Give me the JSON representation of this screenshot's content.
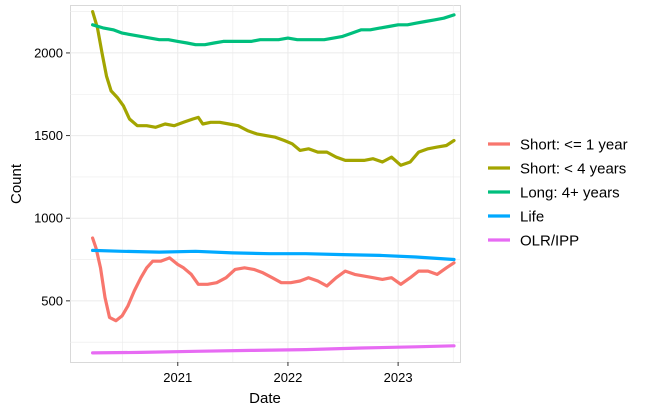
{
  "chart_data": {
    "type": "line",
    "xlabel": "Date",
    "ylabel": "Count",
    "x_axis": {
      "kind": "date",
      "range": [
        "2020-01-10",
        "2023-07-25"
      ],
      "ticks": [
        {
          "value": "2021-01-01",
          "label": "2021"
        },
        {
          "value": "2022-01-01",
          "label": "2022"
        },
        {
          "value": "2023-01-01",
          "label": "2023"
        }
      ]
    },
    "y_axis": {
      "range": [
        130,
        2290
      ],
      "ticks": [
        {
          "value": 500,
          "label": "500"
        },
        {
          "value": 1000,
          "label": "1000"
        },
        {
          "value": 1500,
          "label": "1500"
        },
        {
          "value": 2000,
          "label": "2000"
        }
      ]
    },
    "grid": true,
    "legend_position": "right",
    "series": [
      {
        "name": "Short: <= 1 year",
        "color": "#F8766D",
        "points": [
          [
            "2020-03-25",
            880
          ],
          [
            "2020-04-05",
            820
          ],
          [
            "2020-04-20",
            700
          ],
          [
            "2020-05-05",
            520
          ],
          [
            "2020-05-20",
            400
          ],
          [
            "2020-06-10",
            380
          ],
          [
            "2020-07-01",
            410
          ],
          [
            "2020-07-20",
            470
          ],
          [
            "2020-08-10",
            560
          ],
          [
            "2020-09-01",
            640
          ],
          [
            "2020-09-20",
            700
          ],
          [
            "2020-10-10",
            740
          ],
          [
            "2020-11-05",
            740
          ],
          [
            "2020-12-05",
            760
          ],
          [
            "2021-01-01",
            720
          ],
          [
            "2021-01-20",
            700
          ],
          [
            "2021-02-15",
            660
          ],
          [
            "2021-03-10",
            600
          ],
          [
            "2021-04-10",
            600
          ],
          [
            "2021-05-10",
            610
          ],
          [
            "2021-06-10",
            640
          ],
          [
            "2021-07-10",
            690
          ],
          [
            "2021-08-10",
            700
          ],
          [
            "2021-09-10",
            690
          ],
          [
            "2021-10-10",
            670
          ],
          [
            "2021-11-10",
            640
          ],
          [
            "2021-12-10",
            610
          ],
          [
            "2022-01-10",
            610
          ],
          [
            "2022-02-10",
            620
          ],
          [
            "2022-03-10",
            640
          ],
          [
            "2022-04-10",
            620
          ],
          [
            "2022-05-10",
            590
          ],
          [
            "2022-06-10",
            640
          ],
          [
            "2022-07-10",
            680
          ],
          [
            "2022-08-10",
            660
          ],
          [
            "2022-09-10",
            650
          ],
          [
            "2022-10-10",
            640
          ],
          [
            "2022-11-10",
            630
          ],
          [
            "2022-12-10",
            640
          ],
          [
            "2023-01-10",
            600
          ],
          [
            "2023-02-10",
            640
          ],
          [
            "2023-03-10",
            680
          ],
          [
            "2023-04-10",
            680
          ],
          [
            "2023-05-10",
            660
          ],
          [
            "2023-06-10",
            700
          ],
          [
            "2023-07-05",
            730
          ]
        ]
      },
      {
        "name": "Short: < 4 years",
        "color": "#A3A500",
        "points": [
          [
            "2020-03-25",
            2250
          ],
          [
            "2020-04-10",
            2150
          ],
          [
            "2020-04-25",
            2000
          ],
          [
            "2020-05-10",
            1860
          ],
          [
            "2020-05-25",
            1770
          ],
          [
            "2020-06-15",
            1730
          ],
          [
            "2020-07-05",
            1680
          ],
          [
            "2020-07-25",
            1600
          ],
          [
            "2020-08-20",
            1560
          ],
          [
            "2020-09-20",
            1560
          ],
          [
            "2020-10-20",
            1550
          ],
          [
            "2020-11-20",
            1570
          ],
          [
            "2020-12-20",
            1560
          ],
          [
            "2021-01-20",
            1580
          ],
          [
            "2021-02-20",
            1600
          ],
          [
            "2021-03-10",
            1610
          ],
          [
            "2021-03-25",
            1570
          ],
          [
            "2021-04-20",
            1580
          ],
          [
            "2021-05-20",
            1580
          ],
          [
            "2021-06-20",
            1570
          ],
          [
            "2021-07-20",
            1560
          ],
          [
            "2021-08-20",
            1530
          ],
          [
            "2021-09-20",
            1510
          ],
          [
            "2021-10-20",
            1500
          ],
          [
            "2021-11-20",
            1490
          ],
          [
            "2021-12-20",
            1470
          ],
          [
            "2022-01-15",
            1450
          ],
          [
            "2022-02-10",
            1410
          ],
          [
            "2022-03-10",
            1420
          ],
          [
            "2022-04-10",
            1400
          ],
          [
            "2022-05-10",
            1400
          ],
          [
            "2022-06-10",
            1370
          ],
          [
            "2022-07-10",
            1350
          ],
          [
            "2022-08-10",
            1350
          ],
          [
            "2022-09-10",
            1350
          ],
          [
            "2022-10-10",
            1360
          ],
          [
            "2022-11-10",
            1340
          ],
          [
            "2022-12-10",
            1370
          ],
          [
            "2023-01-10",
            1320
          ],
          [
            "2023-02-10",
            1340
          ],
          [
            "2023-03-10",
            1400
          ],
          [
            "2023-04-10",
            1420
          ],
          [
            "2023-05-10",
            1430
          ],
          [
            "2023-06-10",
            1440
          ],
          [
            "2023-07-05",
            1470
          ]
        ]
      },
      {
        "name": "Long: 4+ years",
        "color": "#00BF7D",
        "points": [
          [
            "2020-03-25",
            2170
          ],
          [
            "2020-05-01",
            2150
          ],
          [
            "2020-06-01",
            2140
          ],
          [
            "2020-07-01",
            2120
          ],
          [
            "2020-08-01",
            2110
          ],
          [
            "2020-09-01",
            2100
          ],
          [
            "2020-10-01",
            2090
          ],
          [
            "2020-11-01",
            2080
          ],
          [
            "2020-12-01",
            2080
          ],
          [
            "2021-01-01",
            2070
          ],
          [
            "2021-02-01",
            2060
          ],
          [
            "2021-03-01",
            2050
          ],
          [
            "2021-04-01",
            2050
          ],
          [
            "2021-05-01",
            2060
          ],
          [
            "2021-06-01",
            2070
          ],
          [
            "2021-07-01",
            2070
          ],
          [
            "2021-08-01",
            2070
          ],
          [
            "2021-09-01",
            2070
          ],
          [
            "2021-10-01",
            2080
          ],
          [
            "2021-11-01",
            2080
          ],
          [
            "2021-12-01",
            2080
          ],
          [
            "2022-01-01",
            2090
          ],
          [
            "2022-02-01",
            2080
          ],
          [
            "2022-03-01",
            2080
          ],
          [
            "2022-04-01",
            2080
          ],
          [
            "2022-05-01",
            2080
          ],
          [
            "2022-06-01",
            2090
          ],
          [
            "2022-07-01",
            2100
          ],
          [
            "2022-08-01",
            2120
          ],
          [
            "2022-09-01",
            2140
          ],
          [
            "2022-10-01",
            2140
          ],
          [
            "2022-11-01",
            2150
          ],
          [
            "2022-12-01",
            2160
          ],
          [
            "2023-01-01",
            2170
          ],
          [
            "2023-02-01",
            2170
          ],
          [
            "2023-03-01",
            2180
          ],
          [
            "2023-04-01",
            2190
          ],
          [
            "2023-05-01",
            2200
          ],
          [
            "2023-06-01",
            2210
          ],
          [
            "2023-07-05",
            2230
          ]
        ]
      },
      {
        "name": "Life",
        "color": "#00A9FF",
        "points": [
          [
            "2020-03-25",
            805
          ],
          [
            "2020-07-01",
            800
          ],
          [
            "2020-11-01",
            795
          ],
          [
            "2021-03-01",
            800
          ],
          [
            "2021-07-01",
            790
          ],
          [
            "2021-11-01",
            785
          ],
          [
            "2022-03-01",
            785
          ],
          [
            "2022-07-01",
            780
          ],
          [
            "2022-11-01",
            775
          ],
          [
            "2023-03-01",
            765
          ],
          [
            "2023-07-05",
            750
          ]
        ]
      },
      {
        "name": "OLR/IPP",
        "color": "#E76BF3",
        "points": [
          [
            "2020-03-25",
            185
          ],
          [
            "2020-09-01",
            188
          ],
          [
            "2021-03-01",
            195
          ],
          [
            "2021-09-01",
            200
          ],
          [
            "2022-03-01",
            205
          ],
          [
            "2022-09-01",
            215
          ],
          [
            "2023-03-01",
            222
          ],
          [
            "2023-07-05",
            228
          ]
        ]
      }
    ]
  }
}
